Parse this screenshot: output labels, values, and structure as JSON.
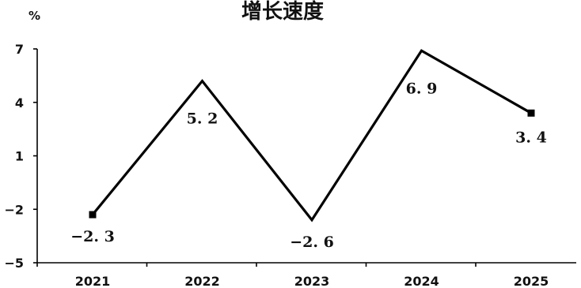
{
  "chart_data": {
    "type": "line",
    "title": "增长速度",
    "unit_label": "%",
    "categories": [
      "2021",
      "2022",
      "2023",
      "2024",
      "2025"
    ],
    "series": [
      {
        "values": [
          -2.3,
          5.2,
          -2.6,
          6.9,
          3.4
        ]
      }
    ],
    "data_labels": [
      "−2. 3",
      "5. 2",
      "−2. 6",
      "6. 9",
      "3. 4"
    ],
    "y_ticks": [
      "7",
      "4",
      "1",
      "−2",
      "−5"
    ],
    "y_tick_values": [
      7,
      4,
      1,
      -2,
      -5
    ],
    "ylim": [
      -5,
      7
    ],
    "grid": false,
    "legend": "none",
    "markers_on": [
      "2021",
      "2025"
    ],
    "line_color": "#000000"
  }
}
